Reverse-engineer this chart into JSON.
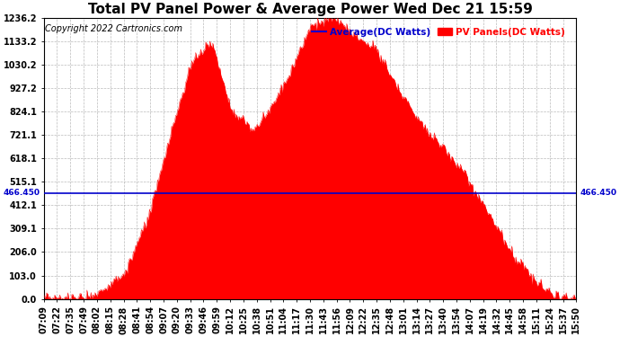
{
  "title": "Total PV Panel Power & Average Power Wed Dec 21 15:59",
  "copyright": "Copyright 2022 Cartronics.com",
  "legend_avg": "Average(DC Watts)",
  "legend_pv": "PV Panels(DC Watts)",
  "avg_value": 466.45,
  "avg_label": "466.450",
  "y_max": 1236.2,
  "y_min": 0.0,
  "y_ticks": [
    0.0,
    103.0,
    206.0,
    309.1,
    412.1,
    515.1,
    618.1,
    721.1,
    824.1,
    927.2,
    1030.2,
    1133.2,
    1236.2
  ],
  "x_labels": [
    "07:09",
    "07:22",
    "07:35",
    "07:49",
    "08:02",
    "08:15",
    "08:28",
    "08:41",
    "08:54",
    "09:07",
    "09:20",
    "09:33",
    "09:46",
    "09:59",
    "10:12",
    "10:25",
    "10:38",
    "10:51",
    "11:04",
    "11:17",
    "11:30",
    "11:43",
    "11:56",
    "12:09",
    "12:22",
    "12:35",
    "12:48",
    "13:01",
    "13:14",
    "13:27",
    "13:40",
    "13:54",
    "14:07",
    "14:19",
    "14:32",
    "14:45",
    "14:58",
    "15:11",
    "15:24",
    "15:37",
    "15:50"
  ],
  "fill_color": "#ff0000",
  "line_color": "#0000cc",
  "avg_label_color": "#0000cc",
  "pv_label_color": "#ff0000",
  "title_color": "#000000",
  "grid_color": "#aaaaaa",
  "background_color": "#ffffff",
  "title_fontsize": 11,
  "tick_fontsize": 7,
  "copyright_fontsize": 7
}
